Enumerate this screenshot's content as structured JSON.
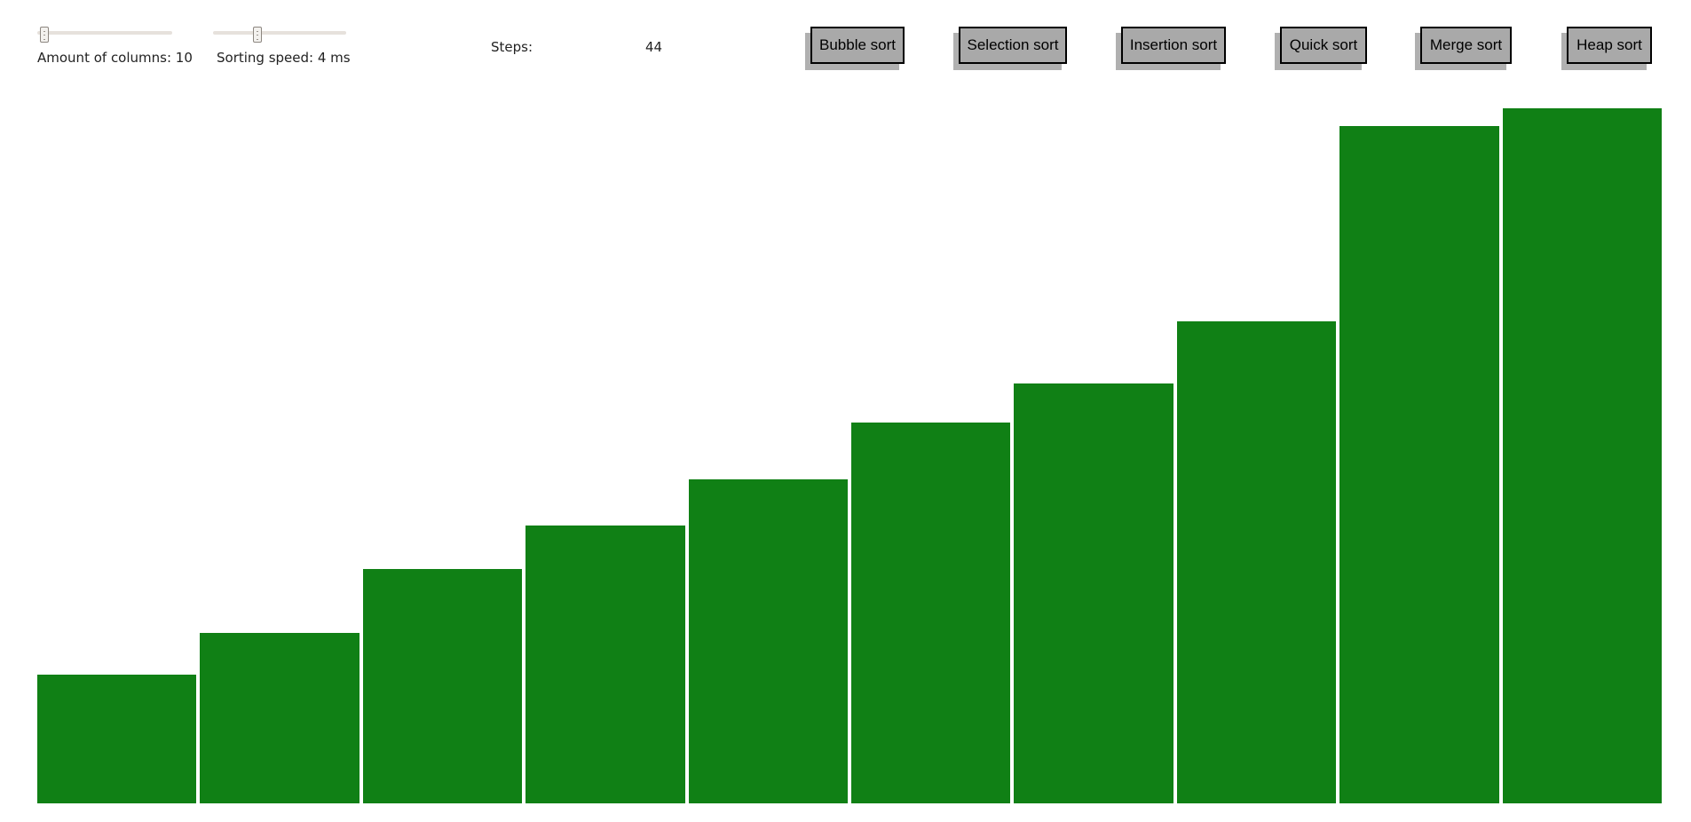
{
  "controls": {
    "columns_label": "Amount of columns: 10",
    "columns_value": 10,
    "columns_range": [
      5,
      100
    ],
    "speed_label": "Sorting speed: 4 ms",
    "speed_value": 4,
    "speed_range": [
      1,
      10
    ],
    "steps_label": "Steps:",
    "steps_value": "44"
  },
  "buttons": [
    {
      "id": "bubble",
      "label": "Bubble sort"
    },
    {
      "id": "selection",
      "label": "Selection sort"
    },
    {
      "id": "insertion",
      "label": "Insertion sort"
    },
    {
      "id": "quick",
      "label": "Quick sort"
    },
    {
      "id": "merge",
      "label": "Merge sort"
    },
    {
      "id": "heap",
      "label": "Heap sort"
    }
  ],
  "chart_data": {
    "type": "bar",
    "values": [
      145,
      192,
      264,
      313,
      365,
      430,
      474,
      544,
      764,
      784
    ],
    "ylim": [
      0,
      784
    ],
    "bar_color": "#108015"
  },
  "colors": {
    "button_bg": "#a9a9a9",
    "button_shadow": "#b0b0b0",
    "slider_track": "#e6e1dc"
  }
}
